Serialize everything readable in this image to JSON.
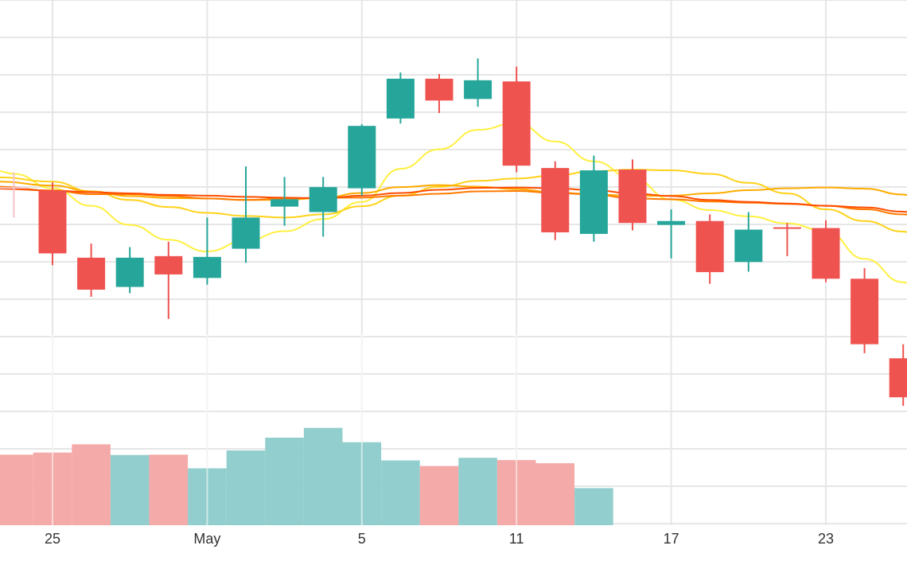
{
  "chart_data": {
    "type": "candlestick",
    "x_tick_labels": [
      {
        "label": "25",
        "day_index": 0
      },
      {
        "label": "May",
        "day_index": 4
      },
      {
        "label": "5",
        "day_index": 8
      },
      {
        "label": "11",
        "day_index": 12
      },
      {
        "label": "17",
        "day_index": 16
      },
      {
        "label": "23",
        "day_index": 20
      }
    ],
    "grid": true,
    "price_range": [
      0,
      100
    ],
    "volume_range": [
      0,
      100
    ],
    "colors": {
      "up": "#26a69a",
      "down": "#ef5350",
      "neutral": "#f6c1c6",
      "volume_up": "#92cecd",
      "volume_down": "#f4aaa8",
      "grid": "#e6e6e6",
      "ma_lines": [
        "#fff040",
        "#ffd21a",
        "#ffab00",
        "#ff7a00",
        "#ff4d00"
      ]
    },
    "candles": [
      {
        "day": -1,
        "open": 66.3,
        "high": 70.1,
        "low": 58.5,
        "close": 66.3
      },
      {
        "day": 0,
        "open": 65.4,
        "high": 67.5,
        "low": 46.3,
        "close": 49.3
      },
      {
        "day": 1,
        "open": 48.2,
        "high": 51.8,
        "low": 38.2,
        "close": 40.0
      },
      {
        "day": 2,
        "open": 40.7,
        "high": 50.9,
        "low": 39.1,
        "close": 48.2
      },
      {
        "day": 3,
        "open": 48.6,
        "high": 52.3,
        "low": 32.5,
        "close": 43.9
      },
      {
        "day": 4,
        "open": 43.0,
        "high": 58.5,
        "low": 41.3,
        "close": 48.4
      },
      {
        "day": 5,
        "open": 50.5,
        "high": 71.6,
        "low": 46.9,
        "close": 58.5
      },
      {
        "day": 6,
        "open": 61.3,
        "high": 68.9,
        "low": 56.4,
        "close": 63.2
      },
      {
        "day": 7,
        "open": 59.9,
        "high": 68.9,
        "low": 53.6,
        "close": 66.3
      },
      {
        "day": 8,
        "open": 66.0,
        "high": 82.4,
        "low": 64.1,
        "close": 82.0
      },
      {
        "day": 9,
        "open": 83.9,
        "high": 95.7,
        "low": 82.6,
        "close": 94.1
      },
      {
        "day": 10,
        "open": 94.1,
        "high": 95.3,
        "low": 85.3,
        "close": 88.5
      },
      {
        "day": 11,
        "open": 88.9,
        "high": 99.3,
        "low": 86.9,
        "close": 93.7
      },
      {
        "day": 12,
        "open": 93.4,
        "high": 97.2,
        "low": 70.1,
        "close": 71.8
      },
      {
        "day": 13,
        "open": 71.2,
        "high": 72.9,
        "low": 52.7,
        "close": 54.7
      },
      {
        "day": 14,
        "open": 54.3,
        "high": 74.4,
        "low": 52.3,
        "close": 70.6
      },
      {
        "day": 15,
        "open": 70.8,
        "high": 73.4,
        "low": 55.2,
        "close": 57.1
      },
      {
        "day": 16,
        "open": 56.6,
        "high": 60.6,
        "low": 48.0,
        "close": 57.6
      },
      {
        "day": 17,
        "open": 57.6,
        "high": 59.3,
        "low": 41.5,
        "close": 44.5
      },
      {
        "day": 18,
        "open": 47.1,
        "high": 59.9,
        "low": 44.6,
        "close": 55.4
      },
      {
        "day": 19,
        "open": 56.0,
        "high": 57.1,
        "low": 48.6,
        "close": 55.6
      },
      {
        "day": 20,
        "open": 55.8,
        "high": 57.8,
        "low": 41.9,
        "close": 42.8
      },
      {
        "day": 21,
        "open": 42.8,
        "high": 45.5,
        "low": 23.7,
        "close": 26.0
      },
      {
        "day": 22,
        "open": 22.4,
        "high": 26.0,
        "low": 10.2,
        "close": 12.4
      }
    ],
    "volume": [
      {
        "day": -1,
        "value": 40.3,
        "dir": "down"
      },
      {
        "day": 0,
        "value": 41.5,
        "dir": "down"
      },
      {
        "day": 1,
        "value": 46.2,
        "dir": "down"
      },
      {
        "day": 2,
        "value": 40.1,
        "dir": "up"
      },
      {
        "day": 3,
        "value": 40.3,
        "dir": "down"
      },
      {
        "day": 4,
        "value": 32.5,
        "dir": "up"
      },
      {
        "day": 5,
        "value": 42.7,
        "dir": "up"
      },
      {
        "day": 6,
        "value": 50.0,
        "dir": "up"
      },
      {
        "day": 7,
        "value": 55.6,
        "dir": "up"
      },
      {
        "day": 8,
        "value": 47.4,
        "dir": "up"
      },
      {
        "day": 9,
        "value": 37.0,
        "dir": "up"
      },
      {
        "day": 10,
        "value": 33.8,
        "dir": "down"
      },
      {
        "day": 11,
        "value": 38.5,
        "dir": "up"
      },
      {
        "day": 12,
        "value": 37.2,
        "dir": "down"
      },
      {
        "day": 13,
        "value": 35.4,
        "dir": "down"
      },
      {
        "day": 14,
        "value": 21.2,
        "dir": "up"
      }
    ],
    "moving_averages": [
      {
        "points": [
          [
            -1.4,
            70.4
          ],
          [
            -1.0,
            69.7
          ],
          [
            0,
            66.0
          ],
          [
            1,
            61.5
          ],
          [
            2,
            56.6
          ],
          [
            3,
            52.8
          ],
          [
            4,
            49.8
          ],
          [
            5,
            52.6
          ],
          [
            6,
            55.0
          ],
          [
            7,
            58.1
          ],
          [
            8,
            62.5
          ],
          [
            9,
            71.0
          ],
          [
            10,
            76.0
          ],
          [
            11,
            81.0
          ],
          [
            12,
            82.7
          ],
          [
            13,
            78.0
          ],
          [
            14,
            72.9
          ],
          [
            15,
            68.6
          ],
          [
            16,
            63.1
          ],
          [
            17,
            60.4
          ],
          [
            18,
            58.8
          ],
          [
            19,
            57.0
          ],
          [
            20,
            55.0
          ],
          [
            21,
            47.9
          ],
          [
            22,
            41.9
          ],
          [
            22.4,
            40.0
          ]
        ]
      },
      {
        "points": [
          [
            -1.4,
            68.8
          ],
          [
            0,
            67.7
          ],
          [
            1,
            65.2
          ],
          [
            2,
            63.0
          ],
          [
            3,
            61.2
          ],
          [
            4,
            59.7
          ],
          [
            5,
            58.9
          ],
          [
            6,
            58.5
          ],
          [
            7,
            59.3
          ],
          [
            8,
            61.4
          ],
          [
            9,
            64.1
          ],
          [
            10,
            66.4
          ],
          [
            11,
            67.9
          ],
          [
            12,
            68.5
          ],
          [
            13,
            69.3
          ],
          [
            14,
            70.4
          ],
          [
            15,
            70.8
          ],
          [
            16,
            70.6
          ],
          [
            17,
            69.7
          ],
          [
            18,
            67.4
          ],
          [
            19,
            64.7
          ],
          [
            20,
            60.6
          ],
          [
            21,
            57.6
          ],
          [
            22,
            54.9
          ],
          [
            22.4,
            53.5
          ]
        ]
      },
      {
        "points": [
          [
            -1.4,
            67.7
          ],
          [
            0,
            66.7
          ],
          [
            1,
            65.2
          ],
          [
            2,
            64.0
          ],
          [
            3,
            63.5
          ],
          [
            4,
            63.4
          ],
          [
            5,
            63.0
          ],
          [
            6,
            63.0
          ],
          [
            7,
            63.6
          ],
          [
            8,
            64.8
          ],
          [
            9,
            66.3
          ],
          [
            10,
            66.8
          ],
          [
            11,
            66.4
          ],
          [
            12,
            65.8
          ],
          [
            13,
            64.9
          ],
          [
            14,
            64.5
          ],
          [
            15,
            64.0
          ],
          [
            16,
            64.1
          ],
          [
            17,
            64.7
          ],
          [
            18,
            65.5
          ],
          [
            19,
            66.0
          ],
          [
            20,
            66.2
          ],
          [
            21,
            65.9
          ],
          [
            22,
            64.4
          ],
          [
            22.4,
            63.0
          ]
        ]
      },
      {
        "points": [
          [
            -1.4,
            66.4
          ],
          [
            0,
            65.4
          ],
          [
            1,
            64.5
          ],
          [
            2,
            64.5
          ],
          [
            3,
            64.0
          ],
          [
            4,
            63.4
          ],
          [
            5,
            63.0
          ],
          [
            6,
            63.4
          ],
          [
            7,
            63.6
          ],
          [
            8,
            63.6
          ],
          [
            9,
            64.1
          ],
          [
            10,
            64.6
          ],
          [
            11,
            65.2
          ],
          [
            12,
            65.3
          ],
          [
            13,
            64.8
          ],
          [
            14,
            64.4
          ],
          [
            15,
            63.4
          ],
          [
            16,
            63.2
          ],
          [
            17,
            62.6
          ],
          [
            18,
            62.3
          ],
          [
            19,
            62.0
          ],
          [
            20,
            61.5
          ],
          [
            21,
            60.6
          ],
          [
            22,
            59.3
          ],
          [
            22.4,
            58.7
          ]
        ]
      },
      {
        "points": [
          [
            -1.4,
            65.9
          ],
          [
            0,
            65.4
          ],
          [
            1,
            65.0
          ],
          [
            2,
            64.7
          ],
          [
            3,
            64.3
          ],
          [
            4,
            64.1
          ],
          [
            5,
            63.8
          ],
          [
            6,
            63.6
          ],
          [
            7,
            63.4
          ],
          [
            8,
            64.1
          ],
          [
            9,
            64.8
          ],
          [
            10,
            65.6
          ],
          [
            11,
            66.1
          ],
          [
            12,
            66.2
          ],
          [
            13,
            66.0
          ],
          [
            14,
            65.5
          ],
          [
            15,
            64.7
          ],
          [
            16,
            64.0
          ],
          [
            17,
            63.0
          ],
          [
            18,
            62.5
          ],
          [
            19,
            62.1
          ],
          [
            20,
            61.5
          ],
          [
            21,
            61.1
          ],
          [
            22,
            60.0
          ],
          [
            22.4,
            59.3
          ]
        ]
      }
    ]
  }
}
